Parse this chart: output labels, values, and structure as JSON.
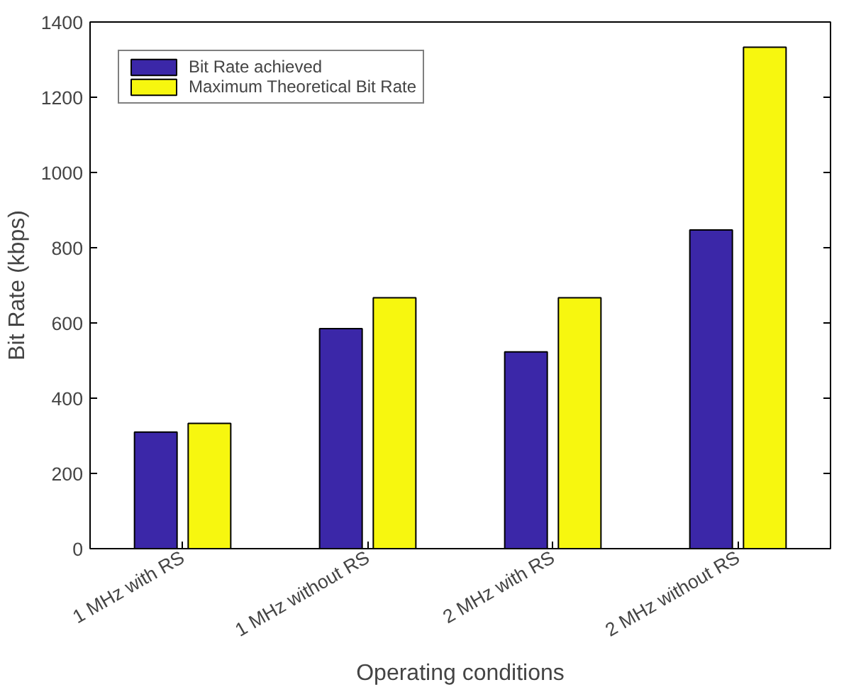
{
  "chart_data": {
    "type": "bar",
    "xlabel": "Operating conditions",
    "ylabel": "Bit Rate (kbps)",
    "categories": [
      "1 MHz with RS",
      "1 MHz without RS",
      "2 MHz with RS",
      "2 MHz without RS"
    ],
    "series": [
      {
        "name": "Bit Rate achieved",
        "color": "#3b27a8",
        "values": [
          310,
          585,
          523,
          847
        ]
      },
      {
        "name": "Maximum Theoretical Bit Rate",
        "color": "#f7f70f",
        "values": [
          333,
          667,
          667,
          1333
        ]
      }
    ],
    "ylim": [
      0,
      1400
    ],
    "yticks": [
      0,
      200,
      400,
      600,
      800,
      1000,
      1200,
      1400
    ],
    "grid": false,
    "legend": "top left"
  }
}
